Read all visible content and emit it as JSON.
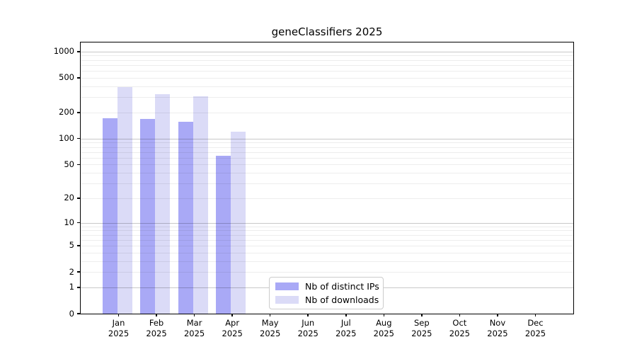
{
  "title": "geneClassifiers 2025",
  "colors": {
    "ips_bar": "#a9a9f6",
    "downloads_bar": "#dbdbf7",
    "axis": "#000000",
    "grid_major": "rgba(0,0,0,0.21)",
    "grid_minor": "rgba(0,0,0,0.07)",
    "legend_border": "#cccccc"
  },
  "chart_data": {
    "type": "bar",
    "title": "geneClassifiers 2025",
    "y_scale": "log1p",
    "grid": "horizontal, major at powers of 10, faint minor lines",
    "legend_position": "inside-bottom-center",
    "categories": [
      "Jan 2025",
      "Feb 2025",
      "Mar 2025",
      "Apr 2025",
      "May 2025",
      "Jun 2025",
      "Jul 2025",
      "Aug 2025",
      "Sep 2025",
      "Oct 2025",
      "Nov 2025",
      "Dec 2025"
    ],
    "series": [
      {
        "name": "Nb of distinct IPs",
        "key": "ips",
        "color": "#a9a9f6",
        "values": [
          173,
          170,
          157,
          63,
          null,
          null,
          null,
          null,
          null,
          null,
          null,
          null
        ]
      },
      {
        "name": "Nb of downloads",
        "key": "downloads",
        "color": "#dbdbf7",
        "values": [
          395,
          325,
          308,
          119,
          null,
          null,
          null,
          null,
          null,
          null,
          null,
          null
        ]
      }
    ],
    "y_ticks": [
      0,
      1,
      2,
      5,
      10,
      20,
      50,
      100,
      200,
      500,
      1000
    ],
    "ylim": [
      0,
      1270
    ],
    "xlabel": "",
    "ylabel": ""
  }
}
